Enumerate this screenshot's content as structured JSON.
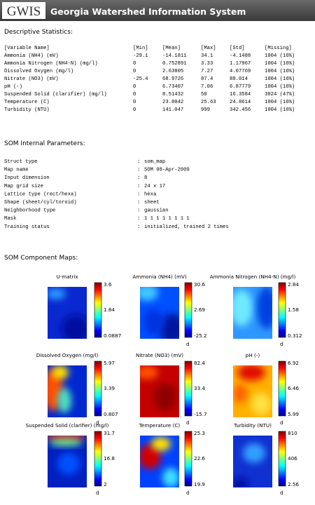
{
  "header": {
    "logo": "GWIS",
    "title": "Georgia Watershed Information System"
  },
  "statistics": {
    "heading": "Descriptive Statistics:",
    "columns": [
      "[Variable Name]",
      "[Min]",
      "[Mean]",
      "[Max]",
      "[Std]",
      "[Missing]"
    ],
    "rows": [
      [
        "Ammonia (NH4) (mV)",
        "-29.1",
        "-14.1811",
        "34.1",
        "-4.1488",
        "1004 (16%)"
      ],
      [
        "Ammonia Nitrogen (NH4-N) (mg/l)",
        "0",
        "0.752891",
        "3.33",
        "1.17967",
        "1004 (16%)"
      ],
      [
        "Dissolved Oxygen (mg/l)",
        "0",
        "2.63805",
        "7.27",
        "4.07769",
        "1004 (16%)"
      ],
      [
        "Nitrate (NO3) (mV)",
        "-25.4",
        "68.9726",
        "87.4",
        "88.014",
        "1004 (16%)"
      ],
      [
        "pH (-)",
        "0",
        "6.73407",
        "7.06",
        "6.87779",
        "1004 (16%)"
      ],
      [
        "Suspended Solid (clarifier) (mg/l)",
        "0",
        "8.51432",
        "50",
        "16.3584",
        "3024 (47%)"
      ],
      [
        "Temperature (C)",
        "0",
        "23.8042",
        "25.63",
        "24.8614",
        "1004 (16%)"
      ],
      [
        "Turbidity (NTU)",
        "0",
        "141.047",
        "999",
        "342.456",
        "1004 (16%)"
      ]
    ]
  },
  "parameters": {
    "heading": "SOM Internal Parameters:",
    "separator": ":",
    "rows": [
      [
        "Struct type",
        "som_map"
      ],
      [
        "Map name",
        "SOM 08-Apr-2009"
      ],
      [
        "Input dimension",
        "8"
      ],
      [
        "Map grid size",
        "24 x 17"
      ],
      [
        "Lattice type (rect/hexa)",
        "hexa"
      ],
      [
        "Shape (sheet/cyl/toroid)",
        "sheet"
      ],
      [
        "Neighborhood type",
        "gaussian"
      ],
      [
        "Mask",
        "1 1 1 1 1 1 1 1"
      ],
      [
        "Training status",
        "initialized, trained 2 times"
      ]
    ]
  },
  "maps": {
    "heading": "SOM Component Maps:",
    "panels": [
      {
        "title": "U-matrix",
        "scale": [
          "3.6",
          "1.84",
          "0.0887"
        ]
      },
      {
        "title": "Ammonia (NH4) (mV)",
        "scale": [
          "30.6",
          "2.69",
          "-25.2"
        ],
        "unit": "d"
      },
      {
        "title": "Ammonia Nitrogen (NH4-N) (mg/l)",
        "scale": [
          "2.84",
          "1.58",
          "0.312"
        ],
        "unit": "d"
      },
      {
        "title": "Dissolved Oxygen (mg/l)",
        "scale": [
          "5.97",
          "3.39",
          "0.807"
        ],
        "unit": "d"
      },
      {
        "title": "Nitrate (NO3) (mV)",
        "scale": [
          "82.4",
          "33.4",
          "-15.7"
        ],
        "unit": "d"
      },
      {
        "title": "pH (-)",
        "scale": [
          "6.92",
          "6.46",
          "5.99"
        ],
        "unit": "d"
      },
      {
        "title": "Suspended Solid (clarifier) (mg/l)",
        "scale": [
          "31.7",
          "16.8",
          "2"
        ],
        "unit": "d"
      },
      {
        "title": "Temperature (C)",
        "scale": [
          "25.3",
          "22.6",
          "19.9"
        ],
        "unit": "d"
      },
      {
        "title": "Turbidity (NTU)",
        "scale": [
          "810",
          "406",
          "2.56"
        ],
        "unit": "d"
      }
    ]
  }
}
